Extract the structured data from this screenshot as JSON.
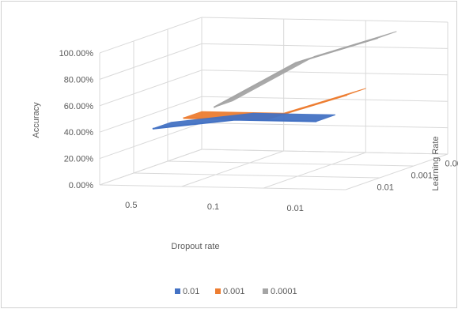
{
  "chart_data": {
    "type": "surface",
    "title": "",
    "ylabel": "Accuracy",
    "xlabel": "Dropout rate",
    "zlabel": "Learning Rate",
    "y_ticks": [
      "0.00%",
      "20.00%",
      "40.00%",
      "60.00%",
      "80.00%",
      "100.00%"
    ],
    "ylim": [
      0,
      100
    ],
    "x_categories": [
      "0.5",
      "0.1",
      "0.01"
    ],
    "series_categories": [
      "0.01",
      "0.001",
      "0.0001"
    ],
    "series": [
      {
        "name": "0.01",
        "color": "#4472C4",
        "values": [
          40,
          48,
          48
        ]
      },
      {
        "name": "0.001",
        "color": "#ED7D31",
        "values": [
          40,
          40,
          60
        ]
      },
      {
        "name": "0.0001",
        "color": "#A5A5A5",
        "values": [
          40,
          75,
          95
        ]
      }
    ],
    "grid": true,
    "legend_position": "bottom"
  }
}
